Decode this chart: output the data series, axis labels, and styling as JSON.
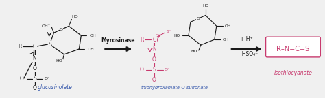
{
  "bg_color": "#f0f0f0",
  "fig_width": 4.74,
  "fig_height": 1.44,
  "dpi": 100,
  "dark_color": "#1a1a1a",
  "red_color": "#c83a6e",
  "blue_color": "#3355aa",
  "glucosinolate_label": "glucosinolate",
  "intermediate_label": "thiohydroxamate-O-sulfonate",
  "product_label": "isothiocyanate",
  "enzyme_label": "Myrosinase",
  "reagent1": "+ H⁺",
  "reagent2": "− HSO₄⁻",
  "product_formula": "R–N=C=S"
}
